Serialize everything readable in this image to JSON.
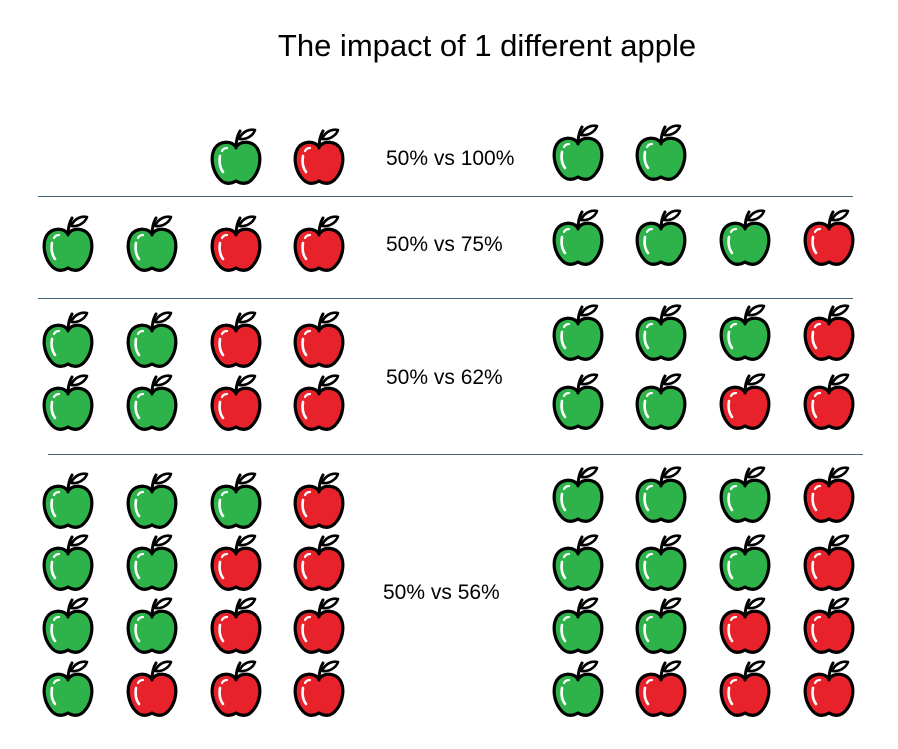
{
  "title": "The impact of 1 different apple",
  "colors": {
    "green": "#2db34a",
    "red": "#e8222a",
    "outline": "#000000",
    "divider": "#44647a"
  },
  "rows": [
    {
      "label": "50% vs 100%",
      "left": [
        "green",
        "red"
      ],
      "right": [
        "green",
        "green"
      ]
    },
    {
      "label": "50% vs 75%",
      "left": [
        "green",
        "green",
        "red",
        "red"
      ],
      "right": [
        "green",
        "green",
        "green",
        "red"
      ]
    },
    {
      "label": "50% vs 62%",
      "left": [
        "green",
        "green",
        "red",
        "red",
        "green",
        "green",
        "red",
        "red"
      ],
      "right": [
        "green",
        "green",
        "green",
        "red",
        "green",
        "green",
        "red",
        "red"
      ]
    },
    {
      "label": "50% vs 56%",
      "left": [
        "green",
        "green",
        "green",
        "red",
        "green",
        "green",
        "red",
        "red",
        "green",
        "green",
        "red",
        "red",
        "green",
        "red",
        "red",
        "red"
      ],
      "right": [
        "green",
        "green",
        "green",
        "red",
        "green",
        "green",
        "green",
        "red",
        "green",
        "green",
        "red",
        "red",
        "green",
        "red",
        "red",
        "red"
      ]
    }
  ]
}
